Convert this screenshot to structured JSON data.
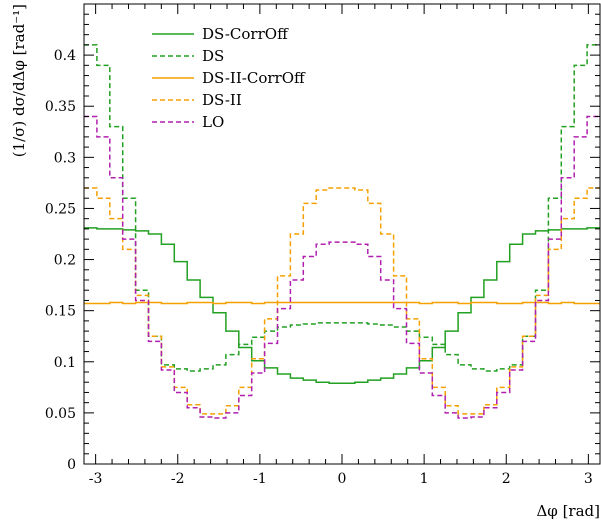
{
  "chart_data": {
    "type": "line",
    "xlabel": "Δφ [rad]",
    "ylabel": "(1/σ) dσ/dΔφ [rad⁻¹]",
    "xlim": [
      -3.14159,
      3.14159
    ],
    "ylim": [
      0,
      0.45
    ],
    "xticks": [
      -3,
      -2,
      -1,
      0,
      1,
      2,
      3
    ],
    "yticks": [
      0,
      0.05,
      0.1,
      0.15,
      0.2,
      0.25,
      0.3,
      0.35,
      0.4
    ],
    "ytick_labels": [
      "0",
      "0.05",
      "0.1",
      "0.15",
      "0.2",
      "0.25",
      "0.3",
      "0.35",
      "0.4"
    ],
    "grid": false,
    "legend_position": "top-left",
    "bins": 40,
    "symmetric": true,
    "series": [
      {
        "name": "DS-CorrOff",
        "color": "#22a022",
        "dash": "solid",
        "values_half": [
          0.231,
          0.23,
          0.23,
          0.229,
          0.228,
          0.225,
          0.215,
          0.198,
          0.18,
          0.163,
          0.148,
          0.13,
          0.114,
          0.101,
          0.094,
          0.088,
          0.084,
          0.082,
          0.08,
          0.079
        ]
      },
      {
        "name": "DS",
        "color": "#22a022",
        "dash": "dashed",
        "values_half": [
          0.41,
          0.39,
          0.33,
          0.26,
          0.17,
          0.125,
          0.097,
          0.093,
          0.091,
          0.093,
          0.097,
          0.107,
          0.117,
          0.124,
          0.13,
          0.134,
          0.136,
          0.137,
          0.138,
          0.138
        ]
      },
      {
        "name": "DS-II-CorrOff",
        "color": "#f5a000",
        "dash": "solid",
        "values_half": [
          0.157,
          0.157,
          0.158,
          0.157,
          0.158,
          0.158,
          0.157,
          0.157,
          0.158,
          0.158,
          0.157,
          0.158,
          0.158,
          0.157,
          0.158,
          0.158,
          0.158,
          0.158,
          0.158,
          0.158
        ]
      },
      {
        "name": "DS-II",
        "color": "#f5a000",
        "dash": "dashed",
        "values_half": [
          0.27,
          0.26,
          0.24,
          0.21,
          0.165,
          0.125,
          0.095,
          0.075,
          0.058,
          0.049,
          0.049,
          0.057,
          0.075,
          0.103,
          0.142,
          0.184,
          0.225,
          0.255,
          0.268,
          0.27
        ]
      },
      {
        "name": "LO",
        "color": "#b01fb0",
        "dash": "dashed",
        "values_half": [
          0.34,
          0.32,
          0.28,
          0.22,
          0.16,
          0.12,
          0.092,
          0.07,
          0.055,
          0.046,
          0.045,
          0.05,
          0.067,
          0.089,
          0.118,
          0.152,
          0.18,
          0.203,
          0.215,
          0.217
        ]
      }
    ]
  }
}
